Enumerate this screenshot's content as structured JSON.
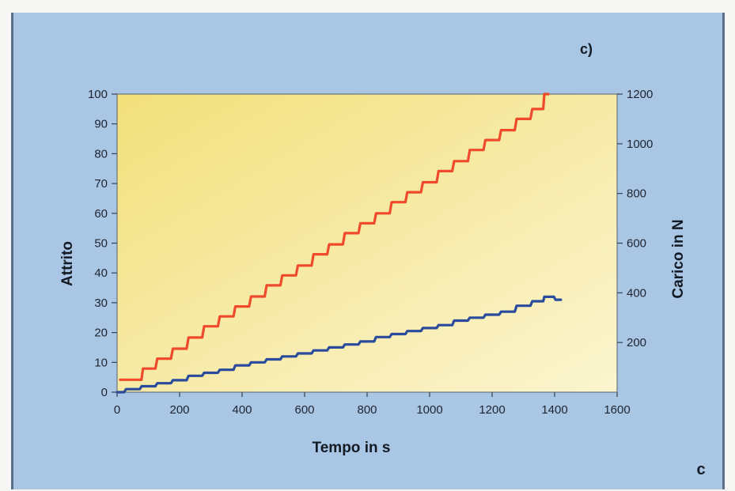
{
  "panel_label": "c)",
  "corner_label": "c",
  "colors": {
    "panel_bg": "#a9c6e4",
    "plot_bg_top": "#f2e07a",
    "plot_bg_bottom": "#fbf5cf",
    "series_red": "#ef4a2c",
    "series_blue": "#2a4a9c"
  },
  "chart_data": {
    "type": "line",
    "title": "",
    "xlabel": "Tempo in s",
    "ylabel": "Attrito",
    "y2label": "Carico in N",
    "xlim": [
      0,
      1600
    ],
    "ylim": [
      0,
      100
    ],
    "y2lim": [
      0,
      1200
    ],
    "xticks": [
      "0",
      "200",
      "400",
      "600",
      "800",
      "1000",
      "1200",
      "1400",
      "1600"
    ],
    "yticks": [
      "0",
      "10",
      "20",
      "30",
      "40",
      "50",
      "60",
      "70",
      "80",
      "90",
      "100"
    ],
    "y2ticks": [
      "200",
      "400",
      "600",
      "800",
      "1000",
      "1200"
    ],
    "grid": false,
    "legend": "none",
    "series": [
      {
        "axis": "right",
        "color": "#ef4a2c",
        "x": [
          10,
          60,
          100,
          150,
          200,
          250,
          300,
          350,
          400,
          450,
          500,
          550,
          600,
          650,
          700,
          750,
          800,
          850,
          900,
          950,
          1000,
          1050,
          1100,
          1150,
          1200,
          1250,
          1300,
          1350,
          1380
        ],
        "y": [
          50,
          50,
          95,
          135,
          175,
          220,
          265,
          305,
          345,
          385,
          430,
          470,
          510,
          555,
          595,
          640,
          680,
          720,
          765,
          805,
          845,
          890,
          930,
          975,
          1015,
          1055,
          1100,
          1140,
          1200
        ]
      },
      {
        "axis": "left",
        "color": "#2a4a9c",
        "x": [
          0,
          50,
          100,
          150,
          200,
          250,
          300,
          350,
          400,
          450,
          500,
          550,
          600,
          650,
          700,
          750,
          800,
          850,
          900,
          950,
          1000,
          1050,
          1100,
          1150,
          1200,
          1250,
          1300,
          1350,
          1380,
          1420
        ],
        "y": [
          0,
          1,
          2,
          3,
          4,
          5.5,
          6.5,
          7.5,
          9,
          10,
          11,
          12,
          13,
          14,
          15,
          16,
          17,
          18.5,
          19.5,
          20.5,
          21.5,
          22.5,
          24,
          25,
          26,
          27,
          29,
          30.5,
          32,
          31
        ]
      }
    ]
  }
}
